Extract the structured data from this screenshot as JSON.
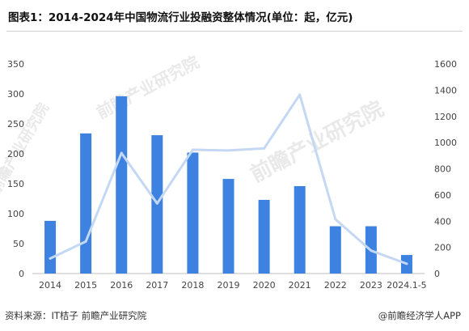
{
  "title": "图表1：2014-2024年中国物流行业投融资整体情况(单位：起，亿元)",
  "watermark": "前瞻产业研究院",
  "source": "资料来源：IT桔子 前瞻产业研究院",
  "credit": "@前瞻经济学人APP",
  "colors": {
    "bar": "#3d82e0",
    "line": "#c4d8f4"
  },
  "chart_data": {
    "type": "bar",
    "categories": [
      "2014",
      "2015",
      "2016",
      "2017",
      "2018",
      "2019",
      "2020",
      "2021",
      "2022",
      "2023",
      "2024.1-5"
    ],
    "series": [
      {
        "type": "bar",
        "axis": "left",
        "values": [
          88,
          234,
          296,
          231,
          202,
          158,
          123,
          146,
          79,
          79,
          31
        ]
      },
      {
        "type": "line",
        "axis": "right",
        "values": [
          115,
          245,
          920,
          535,
          945,
          940,
          955,
          1365,
          415,
          175,
          75
        ]
      }
    ],
    "y_left": {
      "min": 0,
      "max": 350,
      "ticks": [
        "0",
        "50",
        "100",
        "150",
        "200",
        "250",
        "300",
        "350"
      ]
    },
    "y_right": {
      "min": 0,
      "max": 1600,
      "ticks": [
        "0",
        "200",
        "400",
        "600",
        "800",
        "1000",
        "1200",
        "1400",
        "1600"
      ]
    },
    "grid": false,
    "legend": "none"
  }
}
